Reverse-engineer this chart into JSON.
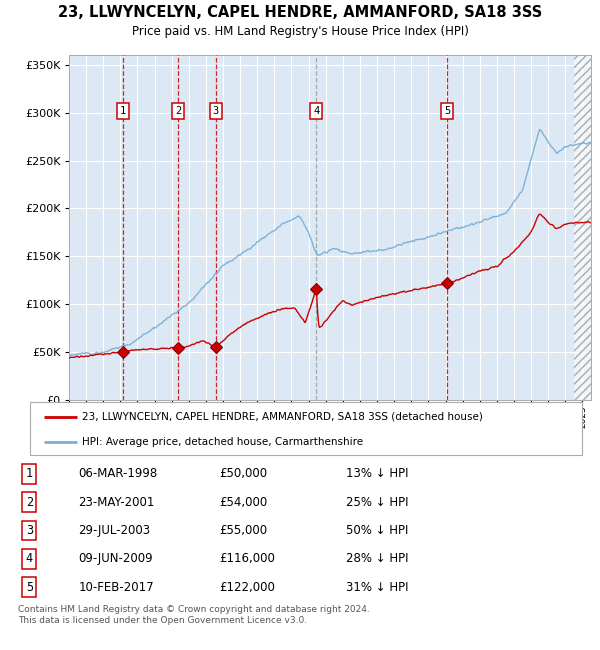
{
  "title": "23, LLWYNCELYN, CAPEL HENDRE, AMMANFORD, SA18 3SS",
  "subtitle": "Price paid vs. HM Land Registry's House Price Index (HPI)",
  "ylim": [
    0,
    360000
  ],
  "yticks": [
    0,
    50000,
    100000,
    150000,
    200000,
    250000,
    300000,
    350000
  ],
  "ytick_labels": [
    "£0",
    "£50K",
    "£100K",
    "£150K",
    "£200K",
    "£250K",
    "£300K",
    "£350K"
  ],
  "hpi_color": "#7aafd4",
  "price_color": "#cc0000",
  "bg_color": "#dce9f5",
  "grid_color": "#ffffff",
  "sale_dates_x": [
    1998.17,
    2001.39,
    2003.57,
    2009.44,
    2017.11
  ],
  "sale_prices_y": [
    50000,
    54000,
    55000,
    116000,
    122000
  ],
  "sale_labels": [
    "1",
    "2",
    "3",
    "4",
    "5"
  ],
  "legend_label_red": "23, LLWYNCELYN, CAPEL HENDRE, AMMANFORD, SA18 3SS (detached house)",
  "legend_label_blue": "HPI: Average price, detached house, Carmarthenshire",
  "table_data": [
    [
      "1",
      "06-MAR-1998",
      "£50,000",
      "13% ↓ HPI"
    ],
    [
      "2",
      "23-MAY-2001",
      "£54,000",
      "25% ↓ HPI"
    ],
    [
      "3",
      "29-JUL-2003",
      "£55,000",
      "50% ↓ HPI"
    ],
    [
      "4",
      "09-JUN-2009",
      "£116,000",
      "28% ↓ HPI"
    ],
    [
      "5",
      "10-FEB-2017",
      "£122,000",
      "31% ↓ HPI"
    ]
  ],
  "footnote": "Contains HM Land Registry data © Crown copyright and database right 2024.\nThis data is licensed under the Open Government Licence v3.0.",
  "xmin": 1995.0,
  "xmax": 2025.5
}
